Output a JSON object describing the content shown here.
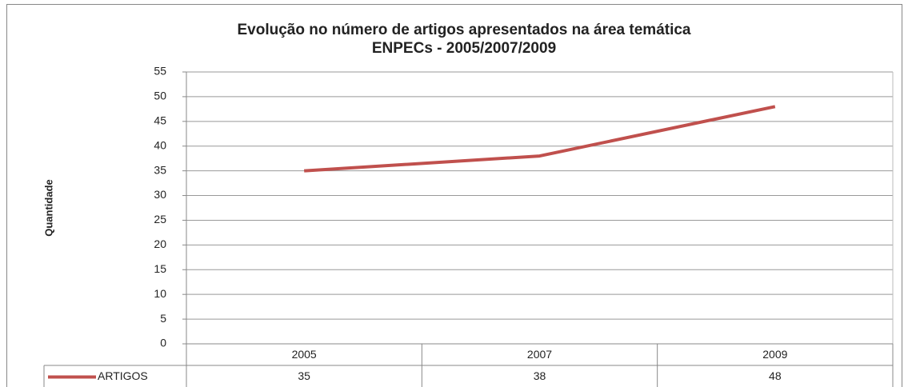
{
  "chart_data": {
    "type": "line",
    "title": "Evolução no número de artigos apresentados na área temática",
    "subtitle": "ENPECs - 2005/2007/2009",
    "y_label": "Quantidade",
    "categories": [
      "2005",
      "2007",
      "2009"
    ],
    "series": [
      {
        "name": "ARTIGOS",
        "color": "#c0504d",
        "values": [
          35,
          38,
          48
        ]
      }
    ],
    "ylim": [
      0,
      55
    ],
    "yticks": [
      0,
      5,
      10,
      15,
      20,
      25,
      30,
      35,
      40,
      45,
      50,
      55
    ],
    "grid": true,
    "data_table": true
  }
}
